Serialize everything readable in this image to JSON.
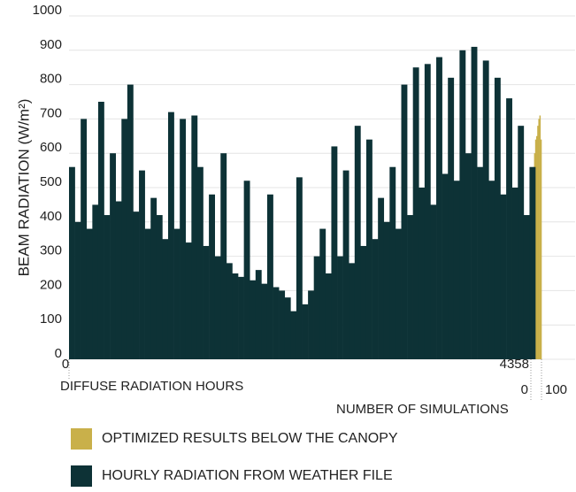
{
  "chart_data": {
    "type": "bar",
    "ylabel": "BEAM RADIATION (W/m²)",
    "xlabel": "DIFFUSE RADIATION HOURS",
    "x2label": "NUMBER OF SIMULATIONS",
    "ylim": [
      0,
      1000
    ],
    "yticks": [
      0,
      100,
      200,
      300,
      400,
      500,
      600,
      700,
      800,
      900,
      1000
    ],
    "xlim": [
      0,
      4358
    ],
    "xticks": [
      0,
      4358
    ],
    "x2lim": [
      0,
      100
    ],
    "x2ticks": [
      0,
      100
    ],
    "grid": true,
    "series": [
      {
        "name": "OPTIMIZED RESULTS BELOW THE CANOPY",
        "color": "#c9b04a",
        "axis": "x2",
        "x": [
          0,
          10,
          20,
          30,
          40,
          50,
          60,
          70,
          80,
          90
        ],
        "values": [
          300,
          450,
          560,
          600,
          640,
          650,
          680,
          700,
          710,
          640
        ]
      },
      {
        "name": "HOURLY RADIATION FROM WEATHER FILE",
        "color": "#0d3236",
        "x": [
          0,
          55,
          110,
          165,
          220,
          275,
          330,
          385,
          440,
          495,
          550,
          605,
          660,
          715,
          770,
          825,
          880,
          935,
          990,
          1045,
          1100,
          1155,
          1210,
          1265,
          1320,
          1375,
          1430,
          1485,
          1540,
          1595,
          1650,
          1705,
          1760,
          1815,
          1870,
          1925,
          1980,
          2035,
          2090,
          2145,
          2200,
          2255,
          2310,
          2365,
          2420,
          2475,
          2530,
          2585,
          2640,
          2695,
          2750,
          2805,
          2860,
          2915,
          2970,
          3025,
          3080,
          3135,
          3190,
          3245,
          3300,
          3355,
          3410,
          3465,
          3520,
          3575,
          3630,
          3685,
          3740,
          3795,
          3850,
          3905,
          3960,
          4015,
          4070,
          4125,
          4180,
          4235,
          4290,
          4345
        ],
        "values": [
          560,
          400,
          700,
          380,
          450,
          750,
          420,
          600,
          460,
          700,
          800,
          430,
          550,
          380,
          470,
          420,
          350,
          720,
          380,
          700,
          340,
          710,
          560,
          330,
          480,
          300,
          600,
          280,
          250,
          240,
          520,
          230,
          260,
          220,
          480,
          210,
          200,
          180,
          140,
          530,
          160,
          200,
          300,
          380,
          250,
          620,
          300,
          550,
          280,
          680,
          330,
          640,
          350,
          470,
          400,
          560,
          380,
          800,
          420,
          850,
          500,
          860,
          450,
          880,
          540,
          820,
          520,
          900,
          600,
          910,
          560,
          870,
          520,
          820,
          480,
          760,
          500,
          680,
          420,
          560
        ]
      }
    ]
  }
}
